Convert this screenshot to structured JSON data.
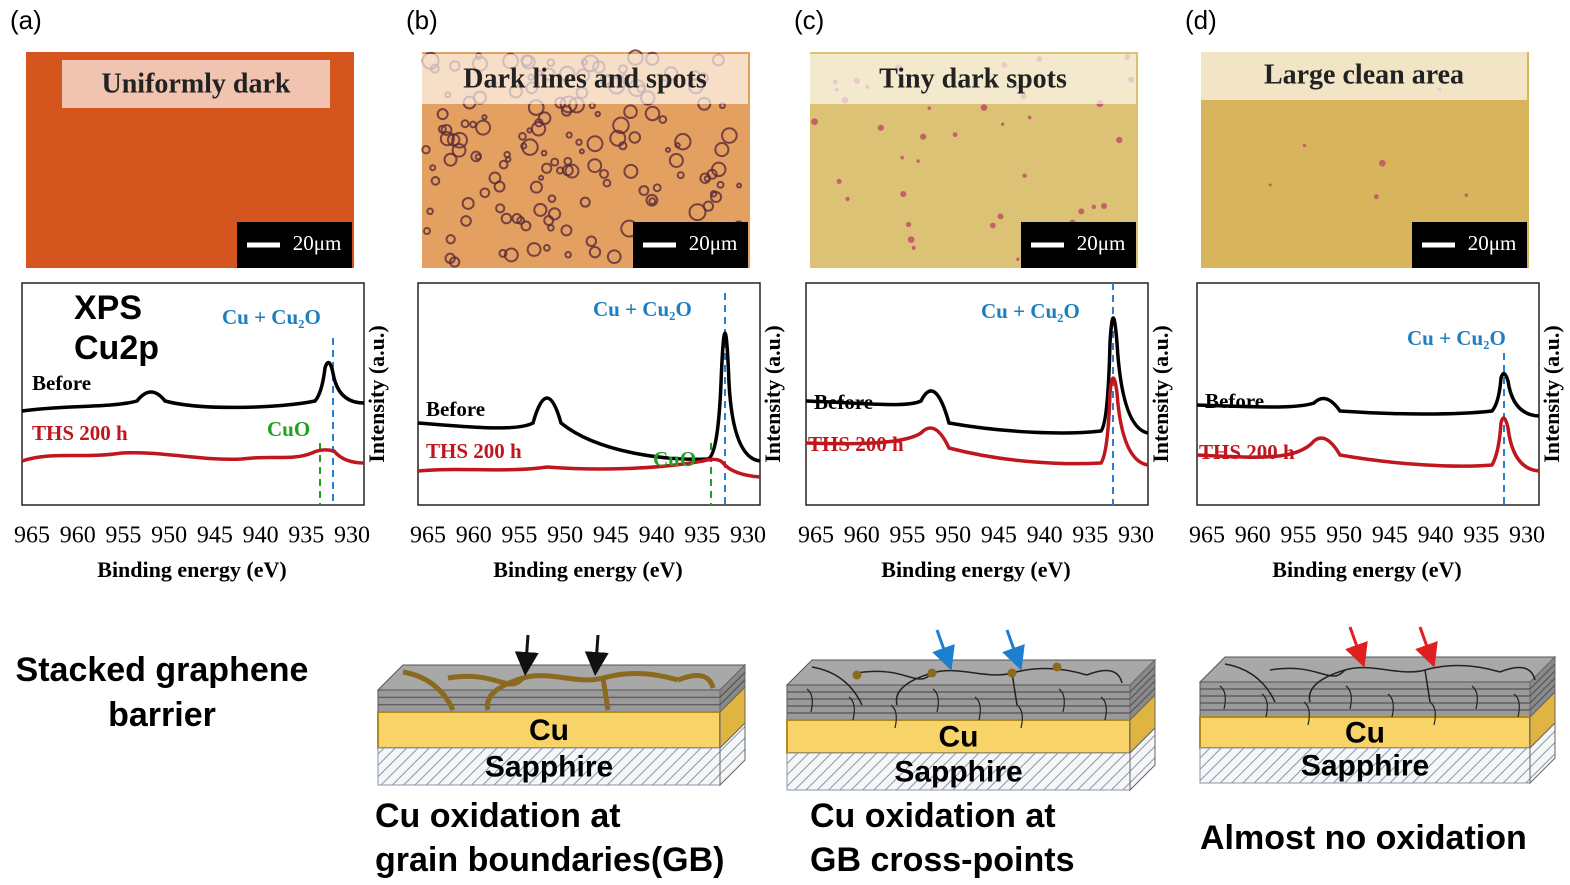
{
  "panels": [
    {
      "label": "(a)",
      "image_caption": "Uniformly dark",
      "scale_bar": "20μm",
      "xps": {
        "title": [
          "XPS",
          "Cu2p"
        ],
        "peak_label": "Cu + Cu₂O",
        "oxide_label": "CuO",
        "curves": [
          "Before",
          "THS 200 h"
        ],
        "xticks": [
          965,
          960,
          955,
          950,
          945,
          940,
          935,
          930
        ],
        "xlabel": "Binding energy (eV)",
        "ylabel": "Intensity (a.u.)"
      }
    },
    {
      "label": "(b)",
      "image_caption": "Dark lines and spots",
      "scale_bar": "20μm",
      "xps": {
        "peak_label": "Cu + Cu₂O",
        "oxide_label": "CuO",
        "curves": [
          "Before",
          "THS 200 h"
        ],
        "xticks": [
          965,
          960,
          955,
          950,
          945,
          940,
          935,
          930
        ],
        "xlabel": "Binding energy (eV)",
        "ylabel": "Intensity (a.u.)"
      }
    },
    {
      "label": "(c)",
      "image_caption": "Tiny dark spots",
      "scale_bar": "20μm",
      "xps": {
        "peak_label": "Cu + Cu₂O",
        "curves": [
          "Before",
          "THS 200 h"
        ],
        "xticks": [
          965,
          960,
          955,
          950,
          945,
          940,
          935,
          930
        ],
        "xlabel": "Binding energy (eV)",
        "ylabel": "Intensity (a.u.)"
      }
    },
    {
      "label": "(d)",
      "image_caption": "Large clean area",
      "scale_bar": "20μm",
      "xps": {
        "peak_label": "Cu + Cu₂O",
        "curves": [
          "Before",
          "THS 200 h"
        ],
        "xticks": [
          965,
          960,
          955,
          950,
          945,
          940,
          935,
          930
        ],
        "xlabel": "Binding energy (eV)",
        "ylabel": "Intensity (a.u.)"
      }
    }
  ],
  "schematic": {
    "label": [
      "Stacked graphene",
      "barrier"
    ],
    "diagrams": [
      {
        "layers": [
          "Cu",
          "Sapphire"
        ],
        "caption": [
          "Cu oxidation at",
          "grain boundaries(GB)"
        ]
      },
      {
        "layers": [
          "Cu",
          "Sapphire"
        ],
        "caption": [
          "Cu oxidation at",
          "GB cross-points"
        ]
      },
      {
        "layers": [
          "Cu",
          "Sapphire"
        ],
        "caption": [
          "Almost no oxidation"
        ]
      }
    ]
  }
}
